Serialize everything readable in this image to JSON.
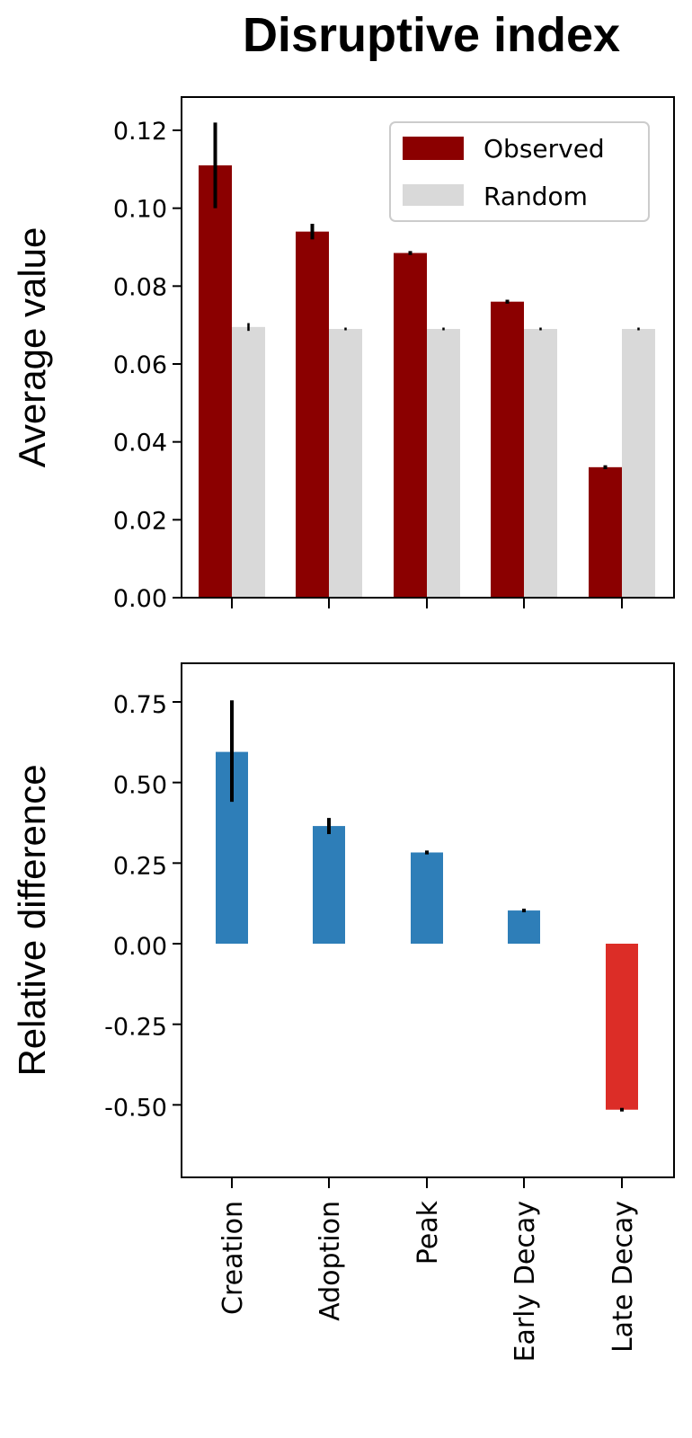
{
  "title": "Disruptive index",
  "colors": {
    "observed": "#8b0000",
    "random": "#d9d9d9",
    "positive": "#2e7eb8",
    "negative": "#dc2d27",
    "errorbar": "#000000"
  },
  "chart_data": [
    {
      "type": "bar",
      "title": "Disruptive index",
      "xlabel": "",
      "ylabel": "Average value",
      "categories": [
        "Creation",
        "Adoption",
        "Peak",
        "Early Decay",
        "Late Decay"
      ],
      "series": [
        {
          "name": "Observed",
          "color": "#8b0000",
          "values": [
            0.111,
            0.094,
            0.0885,
            0.076,
            0.0335
          ],
          "error_low": [
            0.1,
            0.092,
            0.088,
            0.0755,
            0.033
          ],
          "error_high": [
            0.122,
            0.096,
            0.089,
            0.0765,
            0.034
          ]
        },
        {
          "name": "Random",
          "color": "#d9d9d9",
          "values": [
            0.0695,
            0.069,
            0.069,
            0.069,
            0.069
          ],
          "error_low": [
            0.0685,
            0.0688,
            0.0689,
            0.0689,
            0.0689
          ],
          "error_high": [
            0.0705,
            0.0692,
            0.0691,
            0.0691,
            0.0691
          ]
        }
      ],
      "yticks": [
        "0.00",
        "0.02",
        "0.04",
        "0.06",
        "0.08",
        "0.10",
        "0.12"
      ],
      "ylim": [
        0,
        0.129
      ],
      "grid": false,
      "legend": {
        "position": "upper right",
        "entries": [
          "Observed",
          "Random"
        ]
      }
    },
    {
      "type": "bar",
      "title": "",
      "xlabel": "",
      "ylabel": "Relative difference",
      "categories": [
        "Creation",
        "Adoption",
        "Peak",
        "Early Decay",
        "Late Decay"
      ],
      "series": [
        {
          "name": "Relative difference",
          "values": [
            0.595,
            0.365,
            0.283,
            0.103,
            -0.515
          ],
          "colors": [
            "#2e7eb8",
            "#2e7eb8",
            "#2e7eb8",
            "#2e7eb8",
            "#dc2d27"
          ],
          "error_low": [
            0.44,
            0.34,
            0.277,
            0.098,
            -0.52
          ],
          "error_high": [
            0.755,
            0.39,
            0.289,
            0.108,
            -0.51
          ]
        }
      ],
      "yticks": [
        "-0.50",
        "-0.25",
        "0.00",
        "0.25",
        "0.50",
        "0.75"
      ],
      "ylim": [
        -0.58,
        0.82
      ],
      "grid": false,
      "legend": null
    }
  ]
}
